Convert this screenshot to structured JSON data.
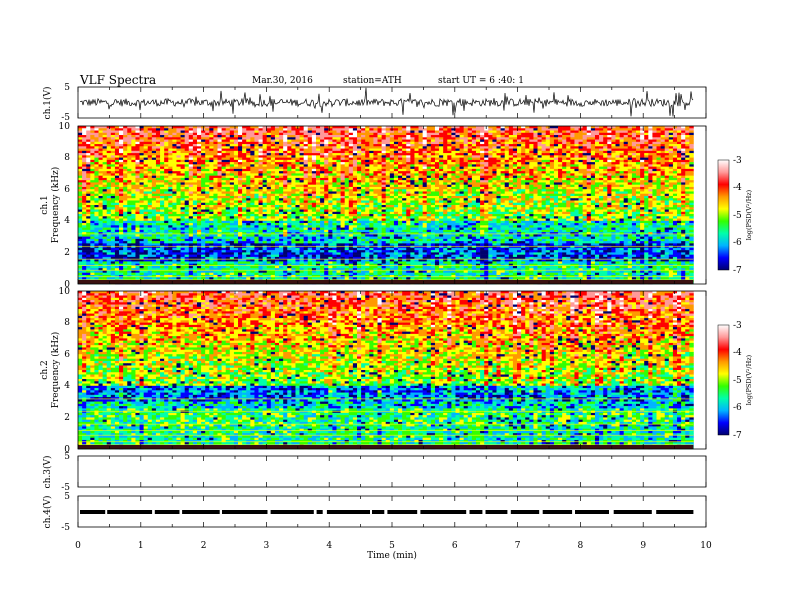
{
  "header": {
    "title": "VLF  Spectra",
    "date": "Mar.30, 2016",
    "station": "station=ATH",
    "start": "start  UT  =   6  :40: 1"
  },
  "chart_data": {
    "type": "heatmap",
    "x_axis": {
      "label": "Time  (min)",
      "range": [
        0,
        10
      ],
      "ticks": [
        "0",
        "1",
        "2",
        "3",
        "4",
        "5",
        "6",
        "7",
        "8",
        "9",
        "10"
      ],
      "data_end": 9.8
    },
    "panels": [
      {
        "kind": "waveform",
        "ylabel": "ch.1(V)",
        "ylim": [
          -5,
          5
        ],
        "yticks": [
          "5",
          "-5"
        ]
      },
      {
        "kind": "spectrogram",
        "channel_label": "ch.1",
        "ylabel": "Frequency  (kHz)",
        "ylim": [
          0,
          10
        ],
        "yticks": [
          "10",
          "8",
          "6",
          "4",
          "2",
          "0"
        ],
        "colorbar": {
          "label": "log(PSD(V²/Hz)",
          "range": [
            -7,
            -3
          ],
          "ticks": [
            "-3",
            "-4",
            "-5",
            "-6",
            "-7"
          ],
          "colors": [
            "#00006e",
            "#0000ff",
            "#00b4ff",
            "#00ffaa",
            "#33ff00",
            "#ffff00",
            "#ff9900",
            "#ff0000",
            "#ff9999",
            "#ffffff"
          ]
        }
      },
      {
        "kind": "spectrogram",
        "channel_label": "ch.2",
        "ylabel": "Frequency  (kHz)",
        "ylim": [
          0,
          10
        ],
        "yticks": [
          "10",
          "8",
          "6",
          "4",
          "2",
          "0"
        ],
        "colorbar": {
          "label": "log(PSD(V²/Hz)",
          "range": [
            -7,
            -3
          ],
          "ticks": [
            "-3",
            "-4",
            "-5",
            "-6",
            "-7"
          ],
          "colors": [
            "#00006e",
            "#0000ff",
            "#00b4ff",
            "#00ffaa",
            "#33ff00",
            "#ffff00",
            "#ff9900",
            "#ff0000",
            "#ff9999",
            "#ffffff"
          ]
        }
      },
      {
        "kind": "waveform",
        "ylabel": "ch.3(V)",
        "ylim": [
          -5,
          5
        ],
        "yticks": [
          "5",
          "-5"
        ],
        "empty": true
      },
      {
        "kind": "waveform",
        "ylabel": "ch.4(V)",
        "ylim": [
          -5,
          5
        ],
        "yticks": [
          "5",
          "-5"
        ],
        "baseline": 0
      }
    ]
  }
}
